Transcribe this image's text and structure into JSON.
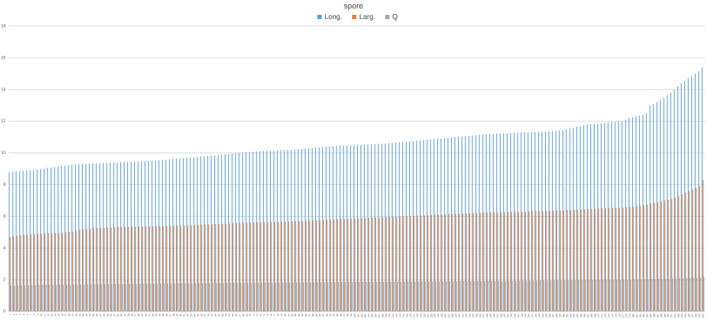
{
  "chart_data": {
    "type": "bar",
    "title": "spore",
    "categories": [
      "1",
      "2",
      "3",
      "4",
      "5",
      "6",
      "7",
      "8",
      "9",
      "10",
      "11",
      "12",
      "13",
      "14",
      "15",
      "16",
      "17",
      "18",
      "19",
      "20",
      "21",
      "22",
      "23",
      "24",
      "25",
      "26",
      "27",
      "28",
      "29",
      "30",
      "31",
      "32",
      "33",
      "34",
      "35",
      "36",
      "37",
      "38",
      "39",
      "40",
      "41",
      "42",
      "43",
      "44",
      "45",
      "46",
      "47",
      "48",
      "49",
      "50",
      "51",
      "52",
      "53",
      "54",
      "55",
      "56",
      "57",
      "58",
      "59",
      "60",
      "61",
      "62",
      "63",
      "64",
      "65",
      "66",
      "67",
      "68",
      "69",
      "70",
      "71",
      "72",
      "73",
      "74",
      "75",
      "76",
      "77",
      "78",
      "79",
      "80",
      "81",
      "82",
      "83",
      "84",
      "85",
      "86",
      "87",
      "88",
      "89",
      "90",
      "91",
      "92",
      "93",
      "94",
      "95",
      "96",
      "97",
      "98",
      "99",
      "100",
      "101",
      "102",
      "103",
      "104",
      "105",
      "106",
      "107",
      "108",
      "109",
      "110",
      "111",
      "112",
      "113",
      "114",
      "115",
      "116",
      "117",
      "118",
      "119",
      "120",
      "121",
      "122",
      "123",
      "124",
      "125",
      "126",
      "127",
      "128",
      "129",
      "130",
      "131",
      "132",
      "133",
      "134",
      "135",
      "136",
      "137",
      "138",
      "139",
      "140",
      "141",
      "142",
      "143",
      "144",
      "145",
      "146",
      "147",
      "148",
      "149",
      "150",
      "151",
      "152",
      "153",
      "154",
      "155",
      "156",
      "157",
      "158",
      "159",
      "160",
      "161",
      "162",
      "163",
      "164",
      "165",
      "166",
      "167",
      "168",
      "169",
      "170",
      "171",
      "172",
      "173",
      "174",
      "175",
      "176",
      "177",
      "178",
      "179",
      "180",
      "181",
      "182",
      "183",
      "184",
      "185",
      "186",
      "187",
      "188",
      "189",
      "190",
      "191",
      "192",
      "193",
      "194",
      "195",
      "196",
      "197",
      "198",
      "199",
      "200"
    ],
    "series": [
      {
        "name": "Long.",
        "color": "#5b9bd5",
        "values": [
          8.8,
          8.82,
          8.84,
          8.86,
          8.88,
          8.9,
          8.92,
          8.95,
          8.98,
          9.0,
          9.03,
          9.06,
          9.09,
          9.12,
          9.15,
          9.18,
          9.2,
          9.22,
          9.25,
          9.28,
          9.3,
          9.31,
          9.32,
          9.33,
          9.34,
          9.35,
          9.36,
          9.37,
          9.38,
          9.39,
          9.4,
          9.41,
          9.42,
          9.43,
          9.44,
          9.45,
          9.46,
          9.47,
          9.48,
          9.5,
          9.51,
          9.52,
          9.53,
          9.54,
          9.56,
          9.58,
          9.6,
          9.62,
          9.64,
          9.66,
          9.68,
          9.7,
          9.72,
          9.74,
          9.76,
          9.78,
          9.8,
          9.82,
          9.84,
          9.86,
          9.88,
          9.9,
          9.92,
          9.94,
          9.96,
          9.98,
          10.0,
          10.02,
          10.04,
          10.06,
          10.08,
          10.1,
          10.11,
          10.12,
          10.13,
          10.14,
          10.15,
          10.16,
          10.17,
          10.18,
          10.19,
          10.2,
          10.22,
          10.24,
          10.26,
          10.28,
          10.3,
          10.32,
          10.34,
          10.36,
          10.38,
          10.4,
          10.42,
          10.44,
          10.45,
          10.46,
          10.47,
          10.48,
          10.49,
          10.5,
          10.51,
          10.52,
          10.53,
          10.54,
          10.55,
          10.56,
          10.57,
          10.58,
          10.6,
          10.62,
          10.64,
          10.66,
          10.68,
          10.7,
          10.72,
          10.74,
          10.76,
          10.78,
          10.8,
          10.82,
          10.84,
          10.86,
          10.88,
          10.9,
          10.92,
          10.94,
          10.96,
          10.98,
          11.0,
          11.02,
          11.04,
          11.06,
          11.08,
          11.1,
          11.12,
          11.14,
          11.16,
          11.18,
          11.2,
          11.21,
          11.22,
          11.23,
          11.24,
          11.25,
          11.26,
          11.27,
          11.28,
          11.29,
          11.3,
          11.3,
          11.31,
          11.32,
          11.33,
          11.34,
          11.35,
          11.36,
          11.38,
          11.4,
          11.42,
          11.45,
          11.5,
          11.55,
          11.6,
          11.65,
          11.7,
          11.75,
          11.8,
          11.82,
          11.84,
          11.86,
          11.88,
          11.9,
          11.92,
          11.94,
          11.96,
          11.98,
          12.0,
          12.1,
          12.2,
          12.25,
          12.3,
          12.35,
          12.4,
          12.5,
          13.0,
          13.1,
          13.2,
          13.35,
          13.5,
          13.65,
          13.8,
          14.0,
          14.2,
          14.4,
          14.55,
          14.7,
          14.85,
          15.0,
          15.15,
          15.4
        ]
      },
      {
        "name": "Larg.",
        "color": "#ed7d31",
        "values": [
          4.7,
          4.75,
          4.78,
          4.8,
          4.82,
          4.84,
          4.86,
          4.88,
          4.9,
          4.92,
          4.93,
          4.94,
          4.95,
          4.96,
          4.97,
          4.98,
          5.0,
          5.02,
          5.05,
          5.1,
          5.15,
          5.2,
          5.22,
          5.24,
          5.26,
          5.27,
          5.28,
          5.29,
          5.3,
          5.31,
          5.32,
          5.33,
          5.34,
          5.35,
          5.35,
          5.36,
          5.36,
          5.37,
          5.37,
          5.38,
          5.38,
          5.39,
          5.39,
          5.4,
          5.4,
          5.41,
          5.41,
          5.42,
          5.42,
          5.43,
          5.43,
          5.44,
          5.45,
          5.46,
          5.47,
          5.48,
          5.49,
          5.5,
          5.51,
          5.52,
          5.53,
          5.54,
          5.55,
          5.56,
          5.57,
          5.58,
          5.59,
          5.6,
          5.6,
          5.61,
          5.61,
          5.62,
          5.62,
          5.63,
          5.63,
          5.64,
          5.64,
          5.65,
          5.66,
          5.67,
          5.68,
          5.69,
          5.7,
          5.71,
          5.72,
          5.73,
          5.74,
          5.75,
          5.76,
          5.77,
          5.78,
          5.79,
          5.8,
          5.81,
          5.82,
          5.83,
          5.84,
          5.85,
          5.86,
          5.87,
          5.88,
          5.89,
          5.9,
          5.91,
          5.92,
          5.93,
          5.94,
          5.95,
          5.96,
          5.97,
          5.98,
          5.99,
          6.0,
          6.01,
          6.02,
          6.03,
          6.04,
          6.05,
          6.06,
          6.07,
          6.08,
          6.09,
          6.1,
          6.11,
          6.12,
          6.13,
          6.14,
          6.15,
          6.16,
          6.17,
          6.18,
          6.19,
          6.2,
          6.21,
          6.22,
          6.23,
          6.24,
          6.25,
          6.25,
          6.26,
          6.26,
          6.27,
          6.27,
          6.28,
          6.28,
          6.29,
          6.29,
          6.3,
          6.3,
          6.31,
          6.31,
          6.32,
          6.32,
          6.33,
          6.34,
          6.35,
          6.36,
          6.37,
          6.38,
          6.39,
          6.4,
          6.41,
          6.42,
          6.43,
          6.44,
          6.45,
          6.46,
          6.47,
          6.48,
          6.49,
          6.5,
          6.51,
          6.52,
          6.53,
          6.54,
          6.55,
          6.56,
          6.58,
          6.6,
          6.62,
          6.64,
          6.66,
          6.7,
          6.75,
          6.8,
          6.85,
          6.9,
          6.95,
          7.0,
          7.05,
          7.1,
          7.2,
          7.3,
          7.4,
          7.5,
          7.6,
          7.7,
          7.8,
          7.9,
          8.3
        ]
      },
      {
        "name": "Q",
        "color": "#a5a5a5",
        "values": [
          1.62,
          1.63,
          1.64,
          1.65,
          1.66,
          1.66,
          1.67,
          1.67,
          1.68,
          1.68,
          1.68,
          1.69,
          1.69,
          1.69,
          1.7,
          1.7,
          1.7,
          1.7,
          1.71,
          1.71,
          1.71,
          1.71,
          1.72,
          1.72,
          1.72,
          1.72,
          1.73,
          1.73,
          1.73,
          1.73,
          1.74,
          1.74,
          1.74,
          1.74,
          1.75,
          1.75,
          1.75,
          1.75,
          1.76,
          1.76,
          1.76,
          1.76,
          1.76,
          1.77,
          1.77,
          1.77,
          1.77,
          1.77,
          1.78,
          1.78,
          1.78,
          1.78,
          1.78,
          1.79,
          1.79,
          1.79,
          1.79,
          1.79,
          1.8,
          1.8,
          1.8,
          1.8,
          1.8,
          1.8,
          1.81,
          1.81,
          1.81,
          1.81,
          1.81,
          1.81,
          1.82,
          1.82,
          1.82,
          1.82,
          1.82,
          1.82,
          1.83,
          1.83,
          1.83,
          1.83,
          1.83,
          1.83,
          1.84,
          1.84,
          1.84,
          1.84,
          1.84,
          1.84,
          1.85,
          1.85,
          1.85,
          1.85,
          1.85,
          1.85,
          1.86,
          1.86,
          1.86,
          1.86,
          1.86,
          1.86,
          1.87,
          1.87,
          1.87,
          1.87,
          1.87,
          1.87,
          1.88,
          1.88,
          1.88,
          1.88,
          1.88,
          1.88,
          1.89,
          1.89,
          1.89,
          1.89,
          1.89,
          1.89,
          1.9,
          1.9,
          1.9,
          1.9,
          1.9,
          1.9,
          1.91,
          1.91,
          1.91,
          1.91,
          1.91,
          1.91,
          1.92,
          1.92,
          1.92,
          1.92,
          1.92,
          1.92,
          1.93,
          1.93,
          1.93,
          1.93,
          1.93,
          1.93,
          1.94,
          1.94,
          1.94,
          1.94,
          1.94,
          1.95,
          1.95,
          1.95,
          1.95,
          1.95,
          1.96,
          1.96,
          1.96,
          1.96,
          1.96,
          1.97,
          1.97,
          1.97,
          1.97,
          1.98,
          1.98,
          1.98,
          1.98,
          1.99,
          1.99,
          1.99,
          1.99,
          2.0,
          2.0,
          2.0,
          2.0,
          2.01,
          2.01,
          2.01,
          2.02,
          2.02,
          2.02,
          2.03,
          2.03,
          2.03,
          2.04,
          2.04,
          2.05,
          2.05,
          2.06,
          2.06,
          2.07,
          2.07,
          2.08,
          2.08,
          2.09,
          2.1,
          2.11,
          2.12,
          2.13,
          2.14,
          2.16,
          2.2
        ]
      }
    ],
    "ylim": [
      0,
      18
    ],
    "yticks": [
      0,
      2,
      4,
      6,
      8,
      10,
      12,
      14,
      16,
      18
    ],
    "grid": true,
    "legend": "top"
  }
}
